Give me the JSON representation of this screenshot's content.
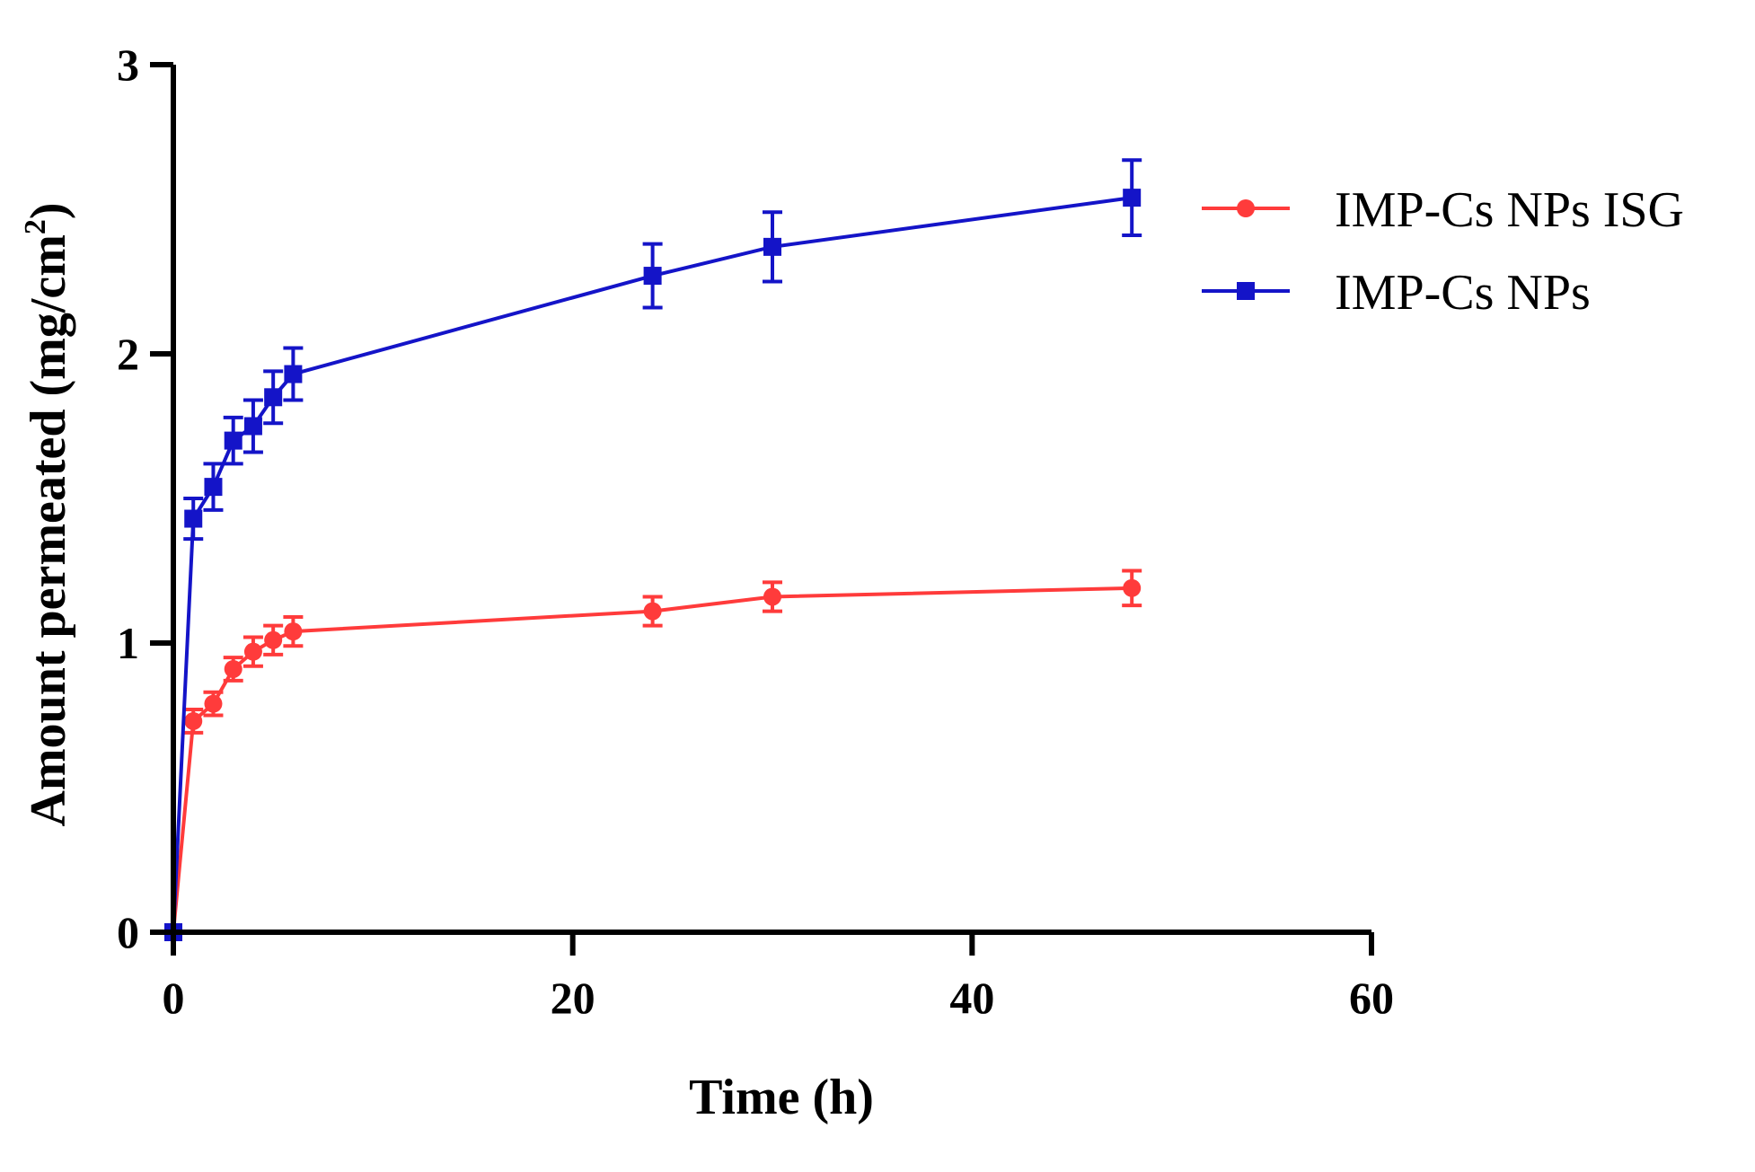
{
  "chart_data": {
    "type": "line",
    "xlabel": "Time (h)",
    "ylabel_main": "Amount permeated (mg/cm",
    "ylabel_sup": "2",
    "ylabel_close": ")",
    "xlim": [
      0,
      60
    ],
    "ylim": [
      0,
      3
    ],
    "xticks": [
      0,
      20,
      40,
      60
    ],
    "yticks": [
      0,
      1,
      2,
      3
    ],
    "grid": false,
    "legend_position": "top-right",
    "series": [
      {
        "name": "IMP-Cs NPs ISG",
        "color": "#ff3b3b",
        "marker": "circle",
        "x": [
          0,
          1,
          2,
          3,
          4,
          5,
          6,
          24,
          30,
          48
        ],
        "y": [
          0,
          0.73,
          0.79,
          0.91,
          0.97,
          1.01,
          1.04,
          1.11,
          1.16,
          1.19
        ],
        "err": [
          0,
          0.04,
          0.04,
          0.04,
          0.05,
          0.05,
          0.05,
          0.05,
          0.05,
          0.06
        ]
      },
      {
        "name": "IMP-Cs NPs",
        "color": "#1414c8",
        "marker": "square",
        "x": [
          0,
          1,
          2,
          3,
          4,
          5,
          6,
          24,
          30,
          48
        ],
        "y": [
          0,
          1.43,
          1.54,
          1.7,
          1.75,
          1.85,
          1.93,
          2.27,
          2.37,
          2.54
        ],
        "err": [
          0,
          0.07,
          0.08,
          0.08,
          0.09,
          0.09,
          0.09,
          0.11,
          0.12,
          0.13
        ]
      }
    ]
  }
}
